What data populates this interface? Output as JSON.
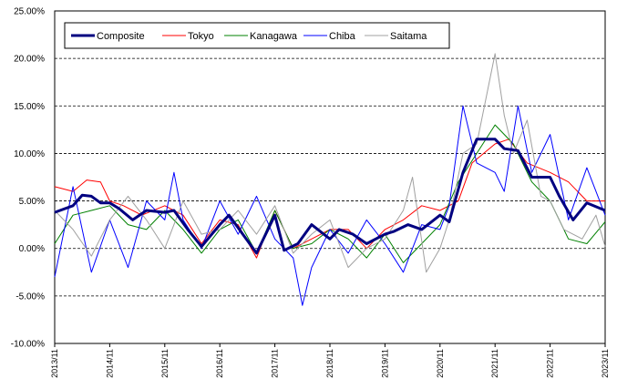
{
  "chart_data": {
    "type": "line",
    "title": "",
    "xlabel": "",
    "ylabel": "",
    "ylim": [
      -10,
      25
    ],
    "y_ticks": [
      "-10.00%",
      "-5.00%",
      "0.00%",
      "5.00%",
      "10.00%",
      "15.00%",
      "20.00%",
      "25.00%"
    ],
    "x_ticks": [
      "2013/11",
      "2014/11",
      "2015/11",
      "2016/11",
      "2017/11",
      "2018/11",
      "2019/11",
      "2020/11",
      "2021/11",
      "2022/11",
      "2023/11"
    ],
    "x_range": [
      "2013/11",
      "2023/11"
    ],
    "grid": "horizontal dashed",
    "legend_position": "top-left inside",
    "series": [
      {
        "name": "Composite",
        "color": "#000080",
        "width": 3,
        "x": [
          "2013/11",
          "2014/03",
          "2014/05",
          "2014/07",
          "2014/09",
          "2014/11",
          "2015/01",
          "2015/04",
          "2015/07",
          "2015/11",
          "2016/01",
          "2016/04",
          "2016/07",
          "2016/11",
          "2017/01",
          "2017/04",
          "2017/07",
          "2017/11",
          "2018/01",
          "2018/04",
          "2018/07",
          "2018/11",
          "2019/01",
          "2019/04",
          "2019/07",
          "2019/11",
          "2020/01",
          "2020/04",
          "2020/07",
          "2020/11",
          "2021/01",
          "2021/04",
          "2021/07",
          "2021/11",
          "2022/01",
          "2022/04",
          "2022/07",
          "2022/11",
          "2023/01",
          "2023/04",
          "2023/07",
          "2023/11"
        ],
        "values": [
          3.8,
          4.5,
          5.6,
          5.5,
          4.8,
          4.8,
          4.2,
          3.0,
          4.0,
          3.8,
          4.0,
          2.0,
          0.2,
          2.5,
          3.5,
          1.5,
          -0.5,
          3.5,
          -0.2,
          0.5,
          2.5,
          1.0,
          2.0,
          1.5,
          0.5,
          1.5,
          1.8,
          2.5,
          2.0,
          3.5,
          2.8,
          8.0,
          11.5,
          11.5,
          10.5,
          10.3,
          7.5,
          7.5,
          5.5,
          3.0,
          4.8,
          4.0
        ]
      },
      {
        "name": "Tokyo",
        "color": "#ff0000",
        "width": 1,
        "x": [
          "2013/11",
          "2014/03",
          "2014/06",
          "2014/09",
          "2014/11",
          "2015/02",
          "2015/06",
          "2015/11",
          "2016/03",
          "2016/07",
          "2016/11",
          "2017/03",
          "2017/07",
          "2017/11",
          "2018/03",
          "2018/07",
          "2018/11",
          "2019/03",
          "2019/07",
          "2019/11",
          "2020/03",
          "2020/07",
          "2020/11",
          "2021/03",
          "2021/06",
          "2021/11",
          "2022/02",
          "2022/06",
          "2022/11",
          "2023/03",
          "2023/07",
          "2023/11"
        ],
        "values": [
          6.5,
          6.0,
          7.2,
          7.0,
          5.0,
          4.5,
          3.5,
          4.5,
          3.5,
          0.5,
          3.0,
          2.5,
          -1.0,
          4.0,
          0.0,
          1.0,
          2.0,
          2.0,
          0.0,
          2.0,
          3.0,
          4.5,
          4.0,
          5.0,
          9.0,
          11.0,
          11.5,
          9.0,
          8.0,
          7.0,
          5.0,
          5.0
        ]
      },
      {
        "name": "Kanagawa",
        "color": "#008000",
        "width": 1,
        "x": [
          "2013/11",
          "2014/03",
          "2014/07",
          "2014/11",
          "2015/03",
          "2015/07",
          "2015/11",
          "2016/03",
          "2016/07",
          "2016/11",
          "2017/03",
          "2017/07",
          "2017/11",
          "2018/03",
          "2018/07",
          "2018/11",
          "2019/03",
          "2019/07",
          "2019/11",
          "2020/03",
          "2020/07",
          "2020/11",
          "2021/03",
          "2021/07",
          "2021/11",
          "2022/03",
          "2022/07",
          "2022/11",
          "2023/03",
          "2023/07",
          "2023/11"
        ],
        "values": [
          0.5,
          3.5,
          4.0,
          4.5,
          2.5,
          2.0,
          4.0,
          2.0,
          -0.5,
          2.0,
          3.0,
          -0.5,
          4.0,
          0.0,
          0.5,
          2.0,
          1.0,
          -1.0,
          1.5,
          -1.5,
          0.5,
          2.5,
          7.0,
          10.0,
          13.0,
          11.0,
          7.0,
          5.0,
          1.0,
          0.5,
          2.8
        ]
      },
      {
        "name": "Chiba",
        "color": "#0000ff",
        "width": 1,
        "x": [
          "2013/11",
          "2014/03",
          "2014/07",
          "2014/11",
          "2015/03",
          "2015/07",
          "2015/11",
          "2016/01",
          "2016/03",
          "2016/07",
          "2016/11",
          "2017/03",
          "2017/07",
          "2017/11",
          "2018/03",
          "2018/05",
          "2018/07",
          "2018/11",
          "2019/03",
          "2019/07",
          "2019/11",
          "2020/03",
          "2020/07",
          "2020/11",
          "2021/01",
          "2021/04",
          "2021/07",
          "2021/11",
          "2022/01",
          "2022/04",
          "2022/07",
          "2022/11",
          "2023/03",
          "2023/07",
          "2023/11"
        ],
        "values": [
          -3.0,
          6.5,
          -2.5,
          3.0,
          -2.0,
          5.0,
          3.0,
          8.0,
          3.0,
          0.0,
          5.0,
          1.5,
          5.5,
          1.0,
          -1.0,
          -6.0,
          -2.0,
          2.0,
          -0.5,
          3.0,
          0.5,
          -2.5,
          2.5,
          2.0,
          4.5,
          15.0,
          9.0,
          8.0,
          6.0,
          15.0,
          8.0,
          12.0,
          3.0,
          8.5,
          3.5
        ]
      },
      {
        "name": "Saitama",
        "color": "#a0a0a0",
        "width": 1,
        "x": [
          "2013/11",
          "2014/03",
          "2014/07",
          "2014/11",
          "2015/03",
          "2015/07",
          "2015/11",
          "2016/03",
          "2016/07",
          "2016/11",
          "2017/03",
          "2017/07",
          "2017/11",
          "2018/03",
          "2018/07",
          "2018/11",
          "2019/03",
          "2019/07",
          "2019/11",
          "2020/03",
          "2020/05",
          "2020/08",
          "2020/11",
          "2021/01",
          "2021/04",
          "2021/07",
          "2021/11",
          "2022/01",
          "2022/03",
          "2022/06",
          "2022/09",
          "2022/11",
          "2023/02",
          "2023/06",
          "2023/09",
          "2023/11"
        ],
        "values": [
          4.0,
          2.0,
          -0.8,
          3.0,
          5.5,
          3.0,
          0.0,
          5.0,
          1.5,
          2.0,
          4.0,
          1.5,
          4.5,
          -0.5,
          1.5,
          3.0,
          -2.0,
          0.0,
          1.0,
          4.0,
          7.5,
          -2.5,
          0.0,
          3.0,
          10.0,
          11.0,
          20.5,
          14.0,
          10.0,
          13.5,
          5.5,
          5.0,
          2.0,
          1.0,
          3.5,
          0.2
        ]
      }
    ]
  }
}
